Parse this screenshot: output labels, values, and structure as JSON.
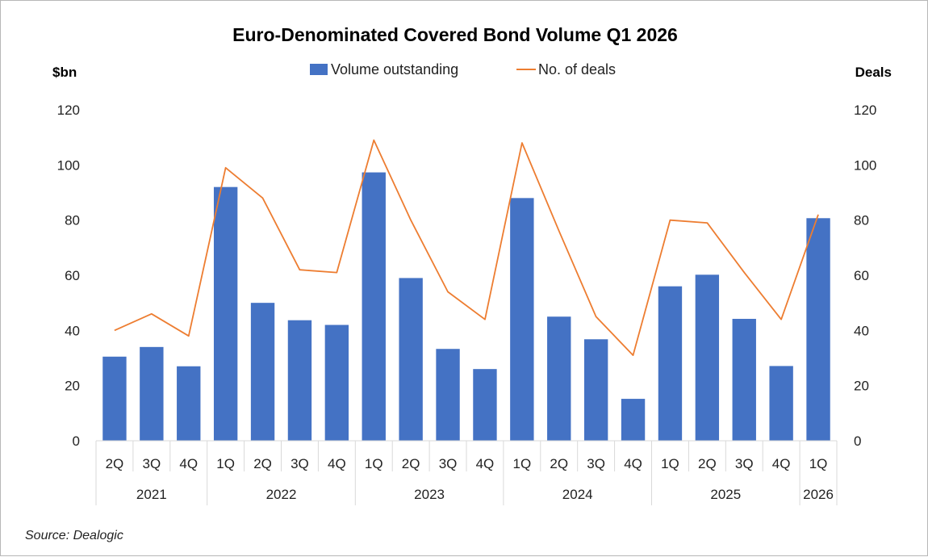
{
  "chart_data": {
    "type": "bar",
    "title": "Euro-Denominated Covered Bond Volume Q1 2026",
    "y_left_label": "$bn",
    "y_right_label": "Deals",
    "ylim": [
      0,
      120
    ],
    "y2lim": [
      0,
      120
    ],
    "yticks": [
      "0",
      "20",
      "40",
      "60",
      "80",
      "100",
      "120"
    ],
    "y2ticks": [
      "0",
      "20",
      "40",
      "60",
      "80",
      "100",
      "120"
    ],
    "grid": false,
    "legend_position": "top-center",
    "categories": [
      "2Q",
      "3Q",
      "4Q",
      "1Q",
      "2Q",
      "3Q",
      "4Q",
      "1Q",
      "2Q",
      "3Q",
      "4Q",
      "1Q",
      "2Q",
      "3Q",
      "4Q",
      "1Q",
      "2Q",
      "3Q",
      "4Q",
      "1Q"
    ],
    "year_groups": [
      {
        "label": "2021",
        "count": 3
      },
      {
        "label": "2022",
        "count": 4
      },
      {
        "label": "2023",
        "count": 4
      },
      {
        "label": "2024",
        "count": 4
      },
      {
        "label": "2025",
        "count": 4
      },
      {
        "label": "2026",
        "count": 1
      }
    ],
    "series": [
      {
        "name": "Volume outstanding",
        "type": "bar",
        "axis": "left",
        "color": "#4472C4",
        "values": [
          30.5,
          34,
          27,
          92,
          50,
          43.7,
          42,
          97.3,
          59,
          33.3,
          26,
          88,
          45,
          36.8,
          15.2,
          56,
          60.2,
          44.2,
          27.1,
          80.7
        ]
      },
      {
        "name": "No. of deals",
        "type": "line",
        "axis": "right",
        "color": "#ED7D31",
        "values": [
          40,
          46,
          38,
          99,
          88,
          62,
          61,
          109,
          80,
          54,
          44,
          108,
          76,
          45,
          31,
          80,
          79,
          61,
          44,
          82
        ]
      }
    ],
    "source": "Source: Dealogic"
  }
}
